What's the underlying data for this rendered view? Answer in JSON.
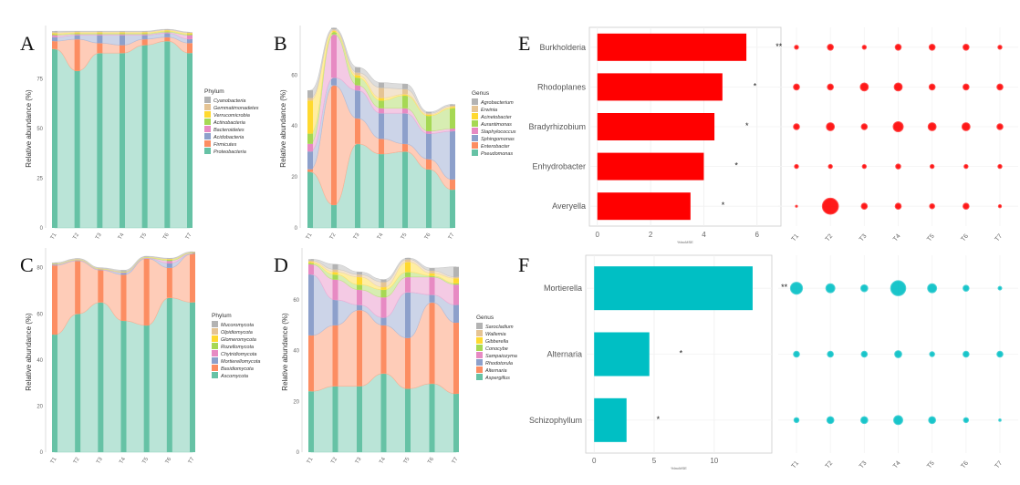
{
  "chart_data": [
    {
      "panel": "A",
      "type": "area",
      "stacked": true,
      "xlabel": "",
      "ylabel": "Relative abundance (%)",
      "categories": [
        "T1",
        "T2",
        "T3",
        "T4",
        "T5",
        "T6",
        "T7"
      ],
      "yticks": [
        0,
        25,
        50,
        75
      ],
      "ylim": [
        0,
        100
      ],
      "legend_title": "Phylum",
      "legend_position": "right",
      "series": [
        {
          "name": "Proteobacteria",
          "color": "#66C2A5",
          "values": [
            90,
            79,
            88,
            88,
            92,
            94,
            88
          ]
        },
        {
          "name": "Firmicutes",
          "color": "#FC8D62",
          "values": [
            4,
            16,
            5,
            4,
            3,
            2,
            5
          ]
        },
        {
          "name": "Acidobacteria",
          "color": "#8DA0CB",
          "values": [
            2,
            2,
            4,
            5,
            2,
            2,
            2
          ]
        },
        {
          "name": "Bacteroidetes",
          "color": "#E78AC3",
          "values": [
            1,
            0.5,
            0.5,
            0.5,
            0.5,
            0.5,
            2
          ]
        },
        {
          "name": "Actinobacteria",
          "color": "#A6D854",
          "values": [
            0.5,
            0.5,
            0.5,
            0.5,
            0.5,
            0.5,
            0.5
          ]
        },
        {
          "name": "Verrucomicrobia",
          "color": "#FFD92F",
          "values": [
            0.5,
            0.5,
            0.5,
            0.5,
            0.5,
            0.5,
            0.5
          ]
        },
        {
          "name": "Gemmatimonadetes",
          "color": "#E5C494",
          "values": [
            0.5,
            0.3,
            0.3,
            0.3,
            0.3,
            0.3,
            0.3
          ]
        },
        {
          "name": "Cyanobacteria",
          "color": "#B3B3B3",
          "values": [
            0.5,
            0.2,
            0.2,
            0.2,
            0.2,
            0.2,
            0.2
          ]
        }
      ]
    },
    {
      "panel": "B",
      "type": "area",
      "stacked": true,
      "ylabel": "Relative abundance (%)",
      "categories": [
        "T1",
        "T2",
        "T3",
        "T4",
        "T5",
        "T6",
        "T7"
      ],
      "yticks": [
        0,
        20,
        40,
        60
      ],
      "ylim": [
        0,
        78
      ],
      "legend_title": "Genus",
      "legend_position": "right",
      "series": [
        {
          "name": "Pseudomonas",
          "color": "#66C2A5",
          "values": [
            22,
            9,
            33,
            29,
            30,
            23,
            15
          ]
        },
        {
          "name": "Enterobacter",
          "color": "#FC8D62",
          "values": [
            1,
            47,
            10,
            6,
            3,
            4,
            4
          ]
        },
        {
          "name": "Sphingomonas",
          "color": "#8DA0CB",
          "values": [
            7,
            3,
            11,
            10,
            12,
            10,
            19
          ]
        },
        {
          "name": "Staphylococcus",
          "color": "#E78AC3",
          "values": [
            3,
            17,
            2,
            2,
            2,
            1,
            1
          ]
        },
        {
          "name": "Aurantimonas",
          "color": "#A6D854",
          "values": [
            4,
            1,
            3,
            3,
            5,
            6,
            8
          ]
        },
        {
          "name": "Acinetobacter",
          "color": "#FFD92F",
          "values": [
            13,
            0.5,
            1,
            1,
            0.5,
            0.5,
            0.5
          ]
        },
        {
          "name": "Erwinia",
          "color": "#E5C494",
          "values": [
            1,
            0.5,
            1,
            4,
            2,
            0.5,
            0.5
          ]
        },
        {
          "name": "Agrobacterium",
          "color": "#B3B3B3",
          "values": [
            3,
            0.5,
            2,
            2,
            2,
            0.5,
            0.5
          ]
        }
      ]
    },
    {
      "panel": "C",
      "type": "area",
      "stacked": true,
      "ylabel": "Relative abundance (%)",
      "categories": [
        "T1",
        "T2",
        "T3",
        "T4",
        "T5",
        "T6",
        "T7"
      ],
      "yticks": [
        0,
        20,
        40,
        60,
        80
      ],
      "ylim": [
        0,
        87
      ],
      "legend_title": "Phylum",
      "legend_position": "right",
      "series": [
        {
          "name": "Ascomycota",
          "color": "#66C2A5",
          "values": [
            51,
            60,
            65,
            57,
            55,
            67,
            65
          ]
        },
        {
          "name": "Basidiomycota",
          "color": "#FC8D62",
          "values": [
            30,
            23,
            14,
            20,
            29,
            13,
            21
          ]
        },
        {
          "name": "Mortierellomycota",
          "color": "#8DA0CB",
          "values": [
            0.3,
            0.2,
            0.2,
            0.8,
            0.2,
            2,
            0.2
          ]
        },
        {
          "name": "Chytridiomycota",
          "color": "#E78AC3",
          "values": [
            0.2,
            0.2,
            0.2,
            0.2,
            0.2,
            1,
            0.2
          ]
        },
        {
          "name": "Rozellomycota",
          "color": "#A6D854",
          "values": [
            0.2,
            0.2,
            0.2,
            0.2,
            0.2,
            0.5,
            0.2
          ]
        },
        {
          "name": "Glomeromycota",
          "color": "#FFD92F",
          "values": [
            0.1,
            0.1,
            0.1,
            0.1,
            0.1,
            0.3,
            0.1
          ]
        },
        {
          "name": "Olpidiomycota",
          "color": "#E5C494",
          "values": [
            0.1,
            0.1,
            0.1,
            0.1,
            0.1,
            0.1,
            0.1
          ]
        },
        {
          "name": "Mucoromycota",
          "color": "#B3B3B3",
          "values": [
            0.3,
            0.2,
            0.2,
            0.5,
            0.2,
            0.2,
            0.2
          ]
        }
      ]
    },
    {
      "panel": "D",
      "type": "area",
      "stacked": true,
      "ylabel": "Relative abundance (%)",
      "categories": [
        "T1",
        "T2",
        "T3",
        "T4",
        "T5",
        "T6",
        "T7"
      ],
      "yticks": [
        0,
        20,
        40,
        60
      ],
      "ylim": [
        0,
        79
      ],
      "legend_title": "Genus",
      "legend_position": "right",
      "series": [
        {
          "name": "Aspergillus",
          "color": "#66C2A5",
          "values": [
            24,
            26,
            26,
            31,
            25,
            27,
            23
          ]
        },
        {
          "name": "Alternaria",
          "color": "#FC8D62",
          "values": [
            22,
            24,
            30,
            19,
            20,
            32,
            28
          ]
        },
        {
          "name": "Rhodotorula",
          "color": "#8DA0CB",
          "values": [
            24,
            10,
            2,
            3,
            18,
            3,
            7
          ]
        },
        {
          "name": "Sampaiozyma",
          "color": "#E78AC3",
          "values": [
            4,
            8,
            6,
            8,
            6,
            7,
            8
          ]
        },
        {
          "name": "Conocybe",
          "color": "#A6D854",
          "values": [
            0.5,
            2,
            2,
            3,
            2,
            0.5,
            0.5
          ]
        },
        {
          "name": "Gibberella",
          "color": "#FFD92F",
          "values": [
            0.5,
            1,
            3,
            1,
            4,
            1,
            2
          ]
        },
        {
          "name": "Wallemia",
          "color": "#E5C494",
          "values": [
            0.5,
            1,
            1,
            2,
            1,
            1,
            0.5
          ]
        },
        {
          "name": "Sarocladium",
          "color": "#B3B3B3",
          "values": [
            0.5,
            2,
            1,
            1,
            0.5,
            1,
            4
          ]
        }
      ]
    },
    {
      "panel": "E",
      "type": "bar",
      "orientation": "horizontal",
      "xlabel": "%IncMSE",
      "categories": [
        "Burkholderia",
        "Rhodoplanes",
        "Bradyrhizobium",
        "Enhydrobacter",
        "Averyella"
      ],
      "values": [
        5.6,
        4.7,
        4.4,
        4.0,
        3.5
      ],
      "significance": [
        "**",
        "*",
        "*",
        "*",
        "*"
      ],
      "xticks": [
        0,
        2,
        4,
        6
      ],
      "xlim": [
        -0.3,
        6.9
      ],
      "color": "#FF0000"
    },
    {
      "panel": "E-bubble",
      "type": "scatter",
      "x": [
        "T1",
        "T2",
        "T3",
        "T4",
        "T5",
        "T6",
        "T7"
      ],
      "y": [
        "Burkholderia",
        "Rhodoplanes",
        "Bradyrhizobium",
        "Enhydrobacter",
        "Averyella"
      ],
      "sizes": [
        [
          2,
          3,
          2,
          3,
          3,
          3,
          2
        ],
        [
          3,
          3,
          4,
          4,
          3,
          3,
          3
        ],
        [
          3,
          4,
          3,
          5,
          4,
          4,
          3
        ],
        [
          2,
          2,
          2,
          2.5,
          2,
          2,
          2
        ],
        [
          1,
          8,
          3,
          3,
          2.5,
          3,
          1.5
        ]
      ],
      "color": "#FF0000"
    },
    {
      "panel": "F",
      "type": "bar",
      "orientation": "horizontal",
      "xlabel": "%IncMSE",
      "categories": [
        "Mortierella",
        "Alternaria",
        "Schizophyllum"
      ],
      "values": [
        13.2,
        4.6,
        2.7
      ],
      "significance": [
        "**",
        "*",
        "*"
      ],
      "xticks": [
        0,
        5,
        10
      ],
      "xlim": [
        -0.7,
        14.8
      ],
      "color": "#00BFC4"
    },
    {
      "panel": "F-bubble",
      "type": "scatter",
      "x": [
        "T1",
        "T2",
        "T3",
        "T4",
        "T5",
        "T6",
        "T7"
      ],
      "y": [
        "Mortierella",
        "Alternaria",
        "Schizophyllum"
      ],
      "sizes": [
        [
          6,
          4.5,
          3.5,
          7.5,
          4.5,
          3,
          1.8
        ],
        [
          3,
          3,
          3,
          3.5,
          2.5,
          3,
          3
        ],
        [
          2.5,
          3.5,
          3.5,
          4.5,
          3.5,
          2.5,
          1.2
        ]
      ],
      "color": "#00BFC4"
    }
  ]
}
